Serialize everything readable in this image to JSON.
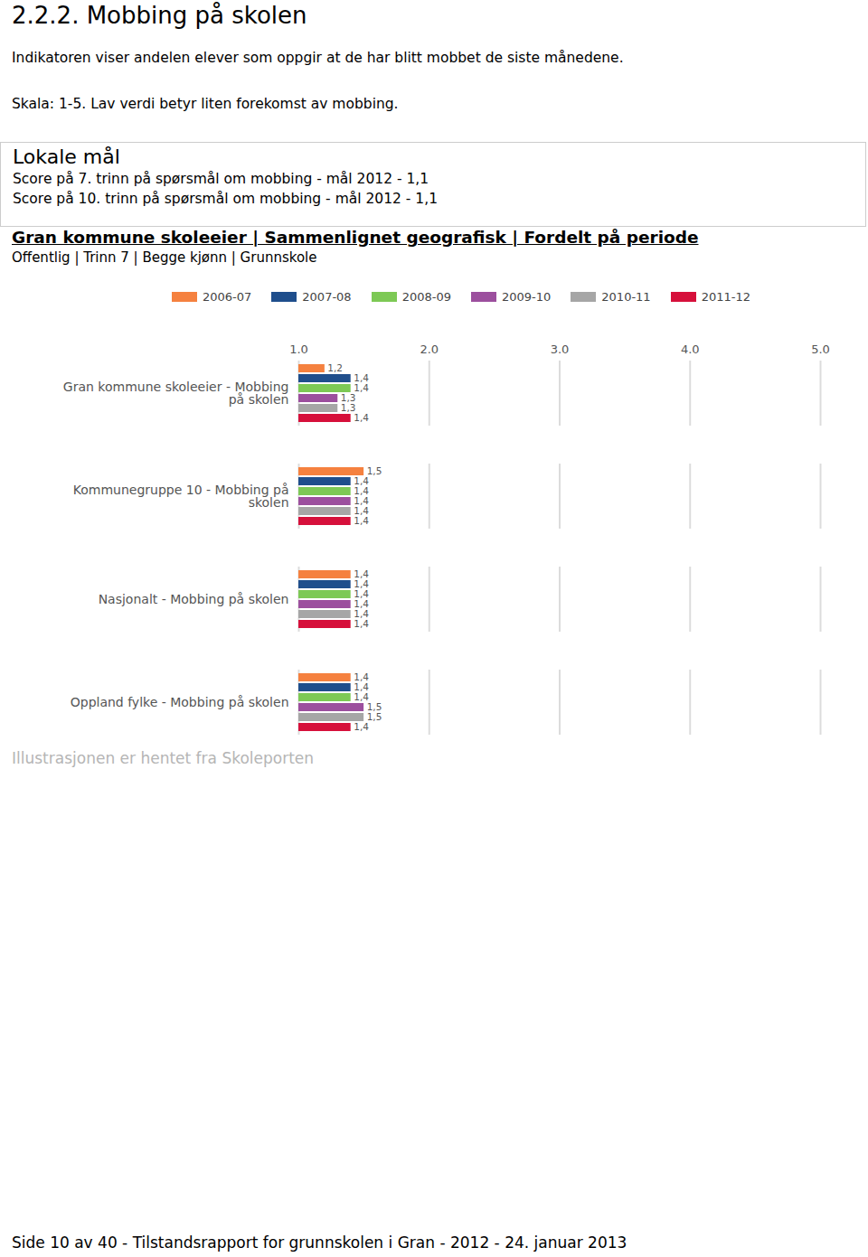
{
  "heading": "2.2.2. Mobbing på skolen",
  "intro": "Indikatoren viser andelen elever som oppgir at de har blitt mobbet de siste månedene.",
  "scale_note": "Skala: 1-5. Lav verdi betyr liten forekomst av mobbing.",
  "goals": {
    "title": "Lokale mål",
    "items": [
      "Score på 7. trinn på spørsmål om mobbing - mål 2012 - 1,1",
      "Score på 10. trinn på spørsmål om mobbing - mål 2012 - 1,1"
    ]
  },
  "chart_header": "Gran kommune skoleeier | Sammenlignet geografisk | Fordelt på periode",
  "chart_filters": "Offentlig | Trinn 7 | Begge kjønn | Grunnskole",
  "chart_data": {
    "type": "bar",
    "orientation": "horizontal",
    "categories": [
      "Gran kommune skoleeier - Mobbing på skolen",
      "Kommunegruppe 10 - Mobbing på skolen",
      "Nasjonalt - Mobbing på skolen",
      "Oppland fylke - Mobbing på skolen"
    ],
    "series": [
      {
        "name": "2006-07",
        "color": "#f5813f",
        "values": [
          1.2,
          1.5,
          1.4,
          1.4
        ],
        "value_labels": [
          "1,2",
          "1,5",
          "1,4",
          "1,4"
        ]
      },
      {
        "name": "2007-08",
        "color": "#1f4e8c",
        "values": [
          1.4,
          1.4,
          1.4,
          1.4
        ],
        "value_labels": [
          "1,4",
          "1,4",
          "1,4",
          "1,4"
        ]
      },
      {
        "name": "2008-09",
        "color": "#7dc955",
        "values": [
          1.4,
          1.4,
          1.4,
          1.4
        ],
        "value_labels": [
          "1,4",
          "1,4",
          "1,4",
          "1,4"
        ]
      },
      {
        "name": "2009-10",
        "color": "#9c4f9e",
        "values": [
          1.3,
          1.4,
          1.4,
          1.5
        ],
        "value_labels": [
          "1,3",
          "1,4",
          "1,4",
          "1,5"
        ]
      },
      {
        "name": "2010-11",
        "color": "#a6a6a6",
        "values": [
          1.3,
          1.4,
          1.4,
          1.5
        ],
        "value_labels": [
          "1,3",
          "1,4",
          "1,4",
          "1,5"
        ]
      },
      {
        "name": "2011-12",
        "color": "#d6103b",
        "values": [
          1.4,
          1.4,
          1.4,
          1.4
        ],
        "value_labels": [
          "1,4",
          "1,4",
          "1,4",
          "1,4"
        ]
      }
    ],
    "xlim": [
      1,
      5
    ],
    "xticks": [
      1,
      2,
      3,
      4,
      5
    ],
    "grid": true,
    "data_labels": true,
    "legend": "top"
  },
  "caption": "Illustrasjonen er hentet fra Skoleporten",
  "footer": "Side 10 av 40 - Tilstandsrapport for grunnskolen i Gran - 2012 - 24. januar 2013"
}
